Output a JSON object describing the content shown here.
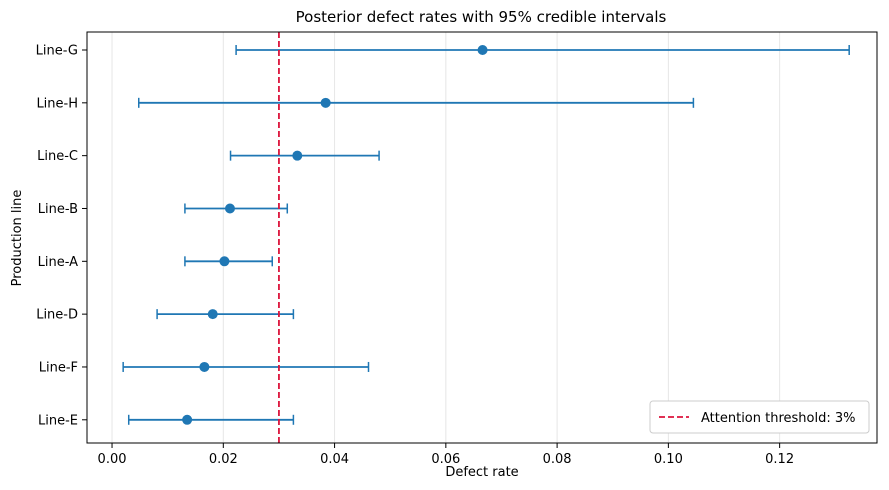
{
  "chart_data": {
    "type": "scatter",
    "title": "Posterior defect rates with 95% credible intervals",
    "xlabel": "Defect rate",
    "ylabel": "Production line",
    "xlim": [
      -0.0045,
      0.1375
    ],
    "x_ticks": [
      0.0,
      0.02,
      0.04,
      0.06,
      0.08,
      0.1,
      0.12
    ],
    "x_tick_labels": [
      "0.00",
      "0.02",
      "0.04",
      "0.06",
      "0.08",
      "0.10",
      "0.12"
    ],
    "grid": "vertical",
    "legend_position": "lower-right",
    "threshold": {
      "value": 0.03,
      "label": "Attention threshold: 3%",
      "color": "#dc143c"
    },
    "point_color": "#1f77b4",
    "categories": [
      "Line-G",
      "Line-H",
      "Line-C",
      "Line-B",
      "Line-A",
      "Line-D",
      "Line-F",
      "Line-E"
    ],
    "points": [
      {
        "line": "Line-G",
        "estimate": 0.0666,
        "lower": 0.0223,
        "upper": 0.1325
      },
      {
        "line": "Line-H",
        "estimate": 0.0384,
        "lower": 0.0048,
        "upper": 0.1045
      },
      {
        "line": "Line-C",
        "estimate": 0.0333,
        "lower": 0.0213,
        "upper": 0.048
      },
      {
        "line": "Line-B",
        "estimate": 0.0212,
        "lower": 0.0131,
        "upper": 0.0315
      },
      {
        "line": "Line-A",
        "estimate": 0.0202,
        "lower": 0.0131,
        "upper": 0.0288
      },
      {
        "line": "Line-D",
        "estimate": 0.0181,
        "lower": 0.0081,
        "upper": 0.0326
      },
      {
        "line": "Line-F",
        "estimate": 0.0166,
        "lower": 0.002,
        "upper": 0.0461
      },
      {
        "line": "Line-E",
        "estimate": 0.0135,
        "lower": 0.003,
        "upper": 0.0326
      }
    ]
  }
}
